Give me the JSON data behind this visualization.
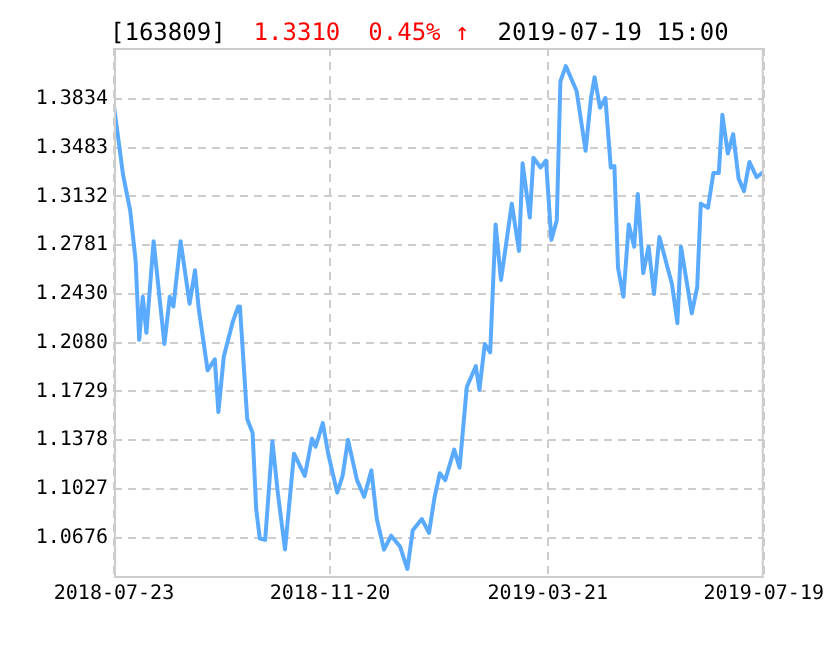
{
  "chart_data": {
    "type": "line",
    "title": "[163809]",
    "annotations": [
      "1.3310",
      "0.45% ↑",
      "2019-07-19 15:00"
    ],
    "x": [
      "2018-07-23",
      "2018-07-28",
      "2018-08-01",
      "2018-08-04",
      "2018-08-06",
      "2018-08-08",
      "2018-08-10",
      "2018-08-14",
      "2018-08-20",
      "2018-08-23",
      "2018-08-25",
      "2018-08-29",
      "2018-09-03",
      "2018-09-06",
      "2018-09-08",
      "2018-09-13",
      "2018-09-17",
      "2018-09-19",
      "2018-09-22",
      "2018-09-27",
      "2018-09-30",
      "2018-10-01",
      "2018-10-05",
      "2018-10-08",
      "2018-10-10",
      "2018-10-12",
      "2018-10-15",
      "2018-10-19",
      "2018-10-22",
      "2018-10-26",
      "2018-10-31",
      "2018-11-06",
      "2018-11-10",
      "2018-11-12",
      "2018-11-16",
      "2018-11-19",
      "2018-11-24",
      "2018-11-27",
      "2018-11-30",
      "2018-12-05",
      "2018-12-09",
      "2018-12-13",
      "2018-12-16",
      "2018-12-20",
      "2018-12-24",
      "2018-12-29",
      "2019-01-02",
      "2019-01-05",
      "2019-01-10",
      "2019-01-14",
      "2019-01-17",
      "2019-01-20",
      "2019-01-23",
      "2019-01-28",
      "2019-01-31",
      "2019-02-04",
      "2019-02-09",
      "2019-02-11",
      "2019-02-14",
      "2019-02-17",
      "2019-02-20",
      "2019-02-23",
      "2019-03-01",
      "2019-03-05",
      "2019-03-07",
      "2019-03-11",
      "2019-03-13",
      "2019-03-17",
      "2019-03-20",
      "2019-03-23",
      "2019-03-26",
      "2019-03-28",
      "2019-03-31",
      "2019-04-06",
      "2019-04-11",
      "2019-04-14",
      "2019-04-16",
      "2019-04-19",
      "2019-04-22",
      "2019-04-25",
      "2019-04-27",
      "2019-04-29",
      "2019-05-02",
      "2019-05-05",
      "2019-05-08",
      "2019-05-10",
      "2019-05-13",
      "2019-05-16",
      "2019-05-19",
      "2019-05-22",
      "2019-05-29",
      "2019-06-01",
      "2019-06-03",
      "2019-06-09",
      "2019-06-12",
      "2019-06-14",
      "2019-06-18",
      "2019-06-21",
      "2019-06-24",
      "2019-06-26",
      "2019-06-29",
      "2019-07-02",
      "2019-07-05",
      "2019-07-08",
      "2019-07-11",
      "2019-07-15",
      "2019-07-19"
    ],
    "series": [
      {
        "color": "#5aabff",
        "values": [
          1.378,
          1.329,
          1.303,
          1.267,
          1.21,
          1.241,
          1.215,
          1.281,
          1.207,
          1.241,
          1.234,
          1.281,
          1.236,
          1.26,
          1.233,
          1.188,
          1.196,
          1.158,
          1.198,
          1.223,
          1.234,
          1.233,
          1.153,
          1.143,
          1.088,
          1.067,
          1.066,
          1.137,
          1.1,
          1.059,
          1.128,
          1.112,
          1.139,
          1.133,
          1.15,
          1.128,
          1.1,
          1.112,
          1.138,
          1.109,
          1.097,
          1.116,
          1.081,
          1.059,
          1.069,
          1.061,
          1.045,
          1.073,
          1.081,
          1.071,
          1.096,
          1.114,
          1.109,
          1.131,
          1.118,
          1.176,
          1.191,
          1.174,
          1.207,
          1.201,
          1.293,
          1.253,
          1.308,
          1.274,
          1.337,
          1.298,
          1.341,
          1.334,
          1.339,
          1.282,
          1.296,
          1.396,
          1.407,
          1.389,
          1.346,
          1.384,
          1.399,
          1.377,
          1.384,
          1.334,
          1.335,
          1.262,
          1.241,
          1.293,
          1.277,
          1.315,
          1.258,
          1.277,
          1.243,
          1.284,
          1.25,
          1.222,
          1.277,
          1.229,
          1.248,
          1.308,
          1.305,
          1.33,
          1.33,
          1.372,
          1.344,
          1.358,
          1.326,
          1.317,
          1.338,
          1.327,
          1.331
        ]
      }
    ],
    "xlim": [
      "2018-07-23",
      "2019-07-19"
    ],
    "xticks": [
      "2018-07-23",
      "2018-11-20",
      "2019-03-21",
      "2019-07-19"
    ],
    "ylim": [
      1.04,
      1.42
    ],
    "yticks": [
      1.0676,
      1.1027,
      1.1378,
      1.1729,
      {
        "value": 1.208,
        "label": "1.2080"
      },
      {
        "value": 1.243,
        "label": "1.2430"
      },
      1.2781,
      1.3132,
      1.3483,
      1.3834
    ],
    "grid": true,
    "marker": "none",
    "line_style": "solid"
  }
}
